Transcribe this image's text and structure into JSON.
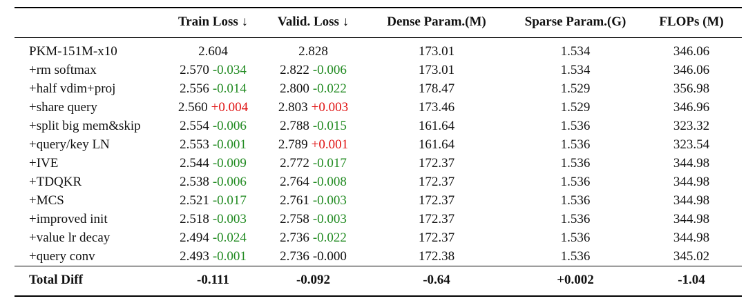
{
  "colors": {
    "text": "#111111",
    "rule": "#000000",
    "delta_green": "#228B22",
    "delta_red": "#E01212"
  },
  "table": {
    "columns": [
      "",
      "Train Loss ↓",
      "Valid. Loss ↓",
      "Dense Param.(M)",
      "Sparse Param.(G)",
      "FLOPs (M)"
    ],
    "rows": [
      {
        "label": "PKM-151M-x10",
        "train": "2.604",
        "train_delta": "",
        "train_delta_color": "",
        "valid": "2.828",
        "valid_delta": "",
        "valid_delta_color": "",
        "dense": "173.01",
        "sparse": "1.534",
        "flops": "346.06"
      },
      {
        "label": "+rm softmax",
        "train": "2.570",
        "train_delta": "-0.034",
        "train_delta_color": "green",
        "valid": "2.822",
        "valid_delta": "-0.006",
        "valid_delta_color": "green",
        "dense": "173.01",
        "sparse": "1.534",
        "flops": "346.06"
      },
      {
        "label": "+half vdim+proj",
        "train": "2.556",
        "train_delta": "-0.014",
        "train_delta_color": "green",
        "valid": "2.800",
        "valid_delta": "-0.022",
        "valid_delta_color": "green",
        "dense": "178.47",
        "sparse": "1.529",
        "flops": "356.98"
      },
      {
        "label": "+share query",
        "train": "2.560",
        "train_delta": "+0.004",
        "train_delta_color": "red",
        "valid": "2.803",
        "valid_delta": "+0.003",
        "valid_delta_color": "red",
        "dense": "173.46",
        "sparse": "1.529",
        "flops": "346.96"
      },
      {
        "label": "+split big mem&skip",
        "train": "2.554",
        "train_delta": "-0.006",
        "train_delta_color": "green",
        "valid": "2.788",
        "valid_delta": "-0.015",
        "valid_delta_color": "green",
        "dense": "161.64",
        "sparse": "1.536",
        "flops": "323.32"
      },
      {
        "label": "+query/key LN",
        "train": "2.553",
        "train_delta": "-0.001",
        "train_delta_color": "green",
        "valid": "2.789",
        "valid_delta": "+0.001",
        "valid_delta_color": "red",
        "dense": "161.64",
        "sparse": "1.536",
        "flops": "323.54"
      },
      {
        "label": "+IVE",
        "train": "2.544",
        "train_delta": "-0.009",
        "train_delta_color": "green",
        "valid": "2.772",
        "valid_delta": "-0.017",
        "valid_delta_color": "green",
        "dense": "172.37",
        "sparse": "1.536",
        "flops": "344.98"
      },
      {
        "label": "+TDQKR",
        "train": "2.538",
        "train_delta": "-0.006",
        "train_delta_color": "green",
        "valid": "2.764",
        "valid_delta": "-0.008",
        "valid_delta_color": "green",
        "dense": "172.37",
        "sparse": "1.536",
        "flops": "344.98"
      },
      {
        "label": "+MCS",
        "train": "2.521",
        "train_delta": "-0.017",
        "train_delta_color": "green",
        "valid": "2.761",
        "valid_delta": "-0.003",
        "valid_delta_color": "green",
        "dense": "172.37",
        "sparse": "1.536",
        "flops": "344.98"
      },
      {
        "label": "+improved init",
        "train": "2.518",
        "train_delta": "-0.003",
        "train_delta_color": "green",
        "valid": "2.758",
        "valid_delta": "-0.003",
        "valid_delta_color": "green",
        "dense": "172.37",
        "sparse": "1.536",
        "flops": "344.98"
      },
      {
        "label": "+value lr decay",
        "train": "2.494",
        "train_delta": "-0.024",
        "train_delta_color": "green",
        "valid": "2.736",
        "valid_delta": "-0.022",
        "valid_delta_color": "green",
        "dense": "172.37",
        "sparse": "1.536",
        "flops": "344.98"
      },
      {
        "label": "+query conv",
        "train": "2.493",
        "train_delta": "-0.001",
        "train_delta_color": "green",
        "valid": "2.736",
        "valid_delta": "-0.000",
        "valid_delta_color": "black",
        "dense": "172.38",
        "sparse": "1.536",
        "flops": "345.02"
      }
    ],
    "total_row": {
      "label": "Total Diff",
      "train": "-0.111",
      "valid": "-0.092",
      "dense": "-0.64",
      "sparse": "+0.002",
      "flops": "-1.04"
    }
  }
}
